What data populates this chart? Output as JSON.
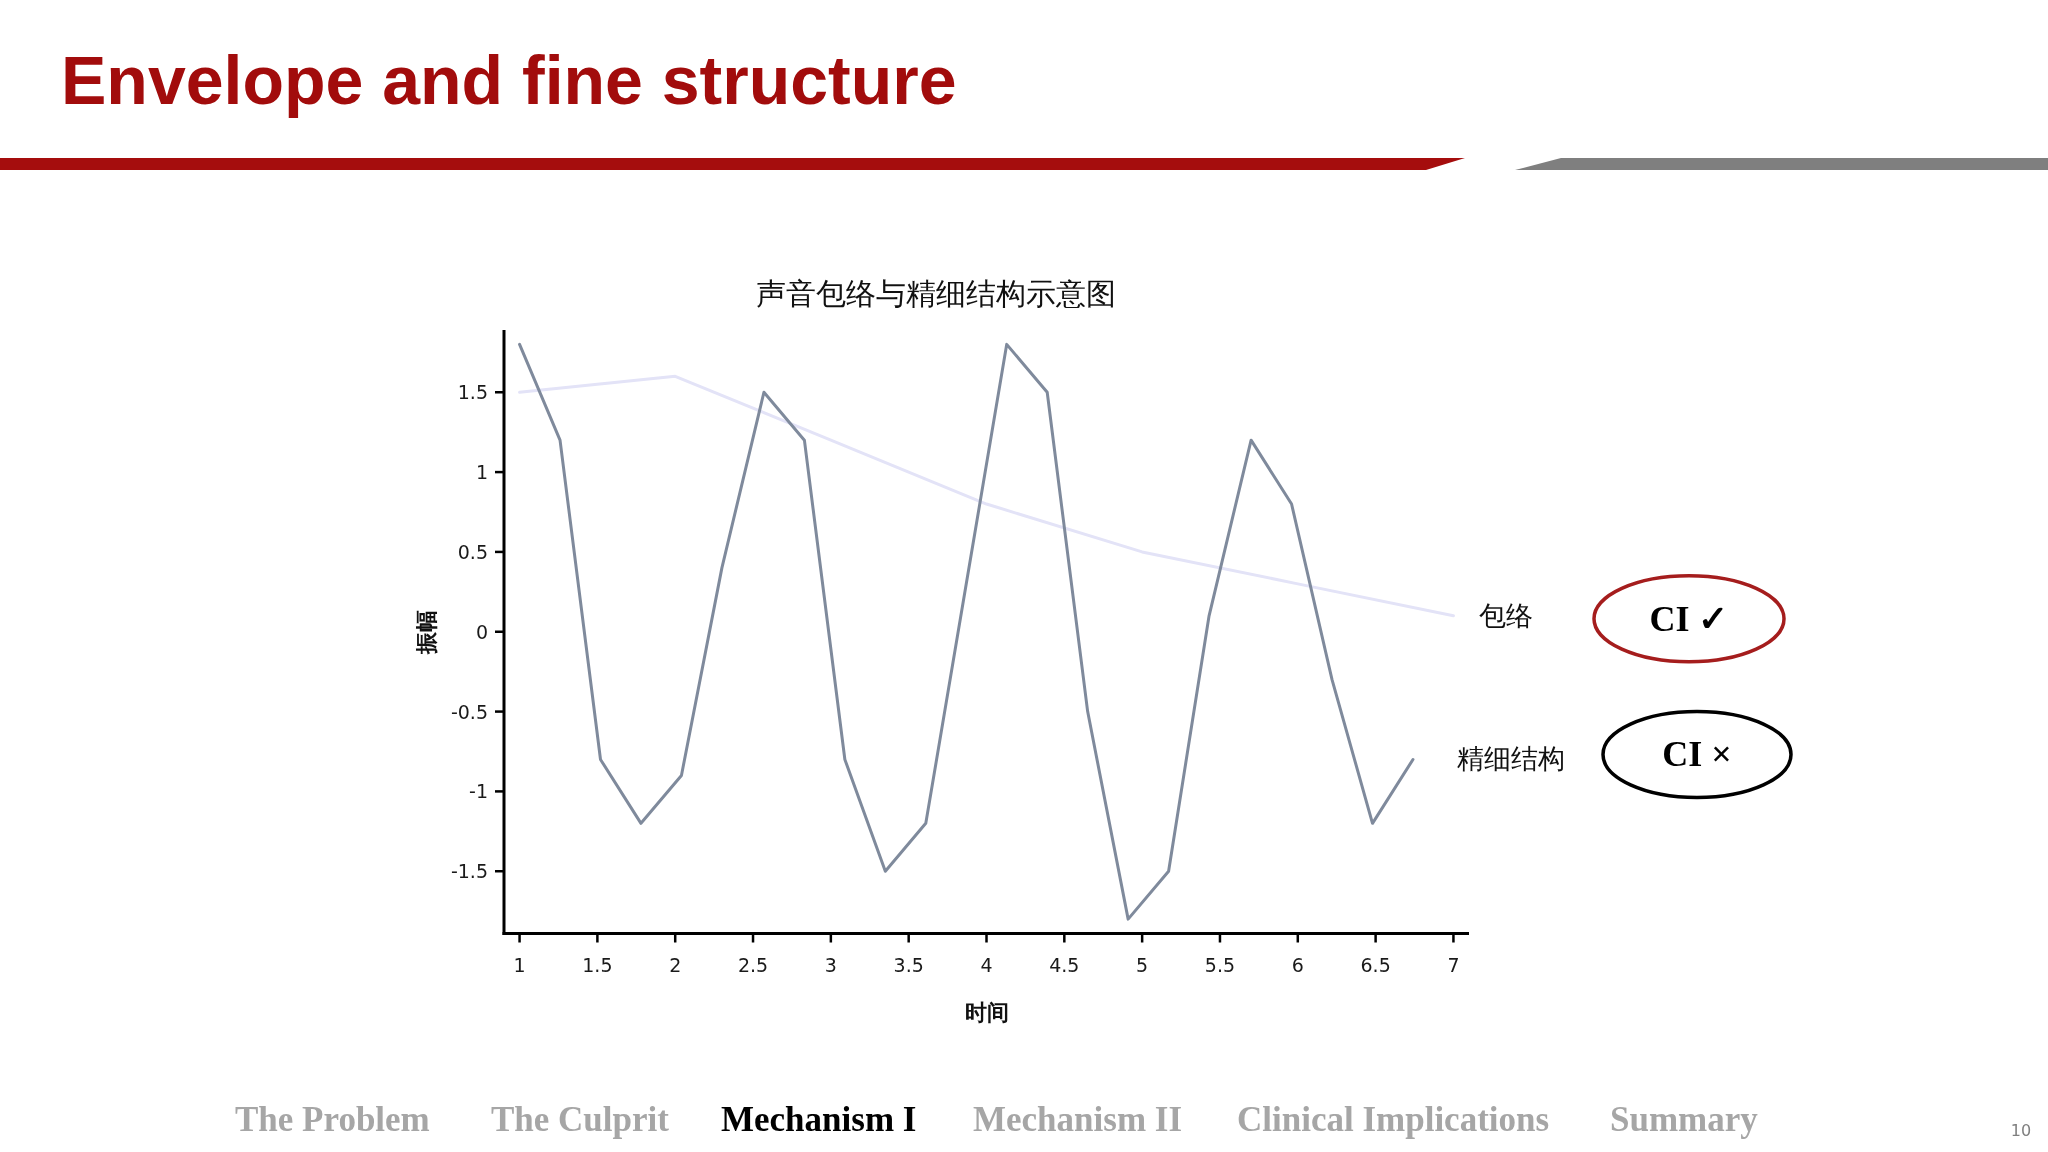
{
  "chart_data": {
    "type": "line",
    "title": "Envelope and fine structure",
    "subtitle": "声音包络与精细结构示意图",
    "xlabel": "时间",
    "ylabel": "振幅",
    "xlim": [
      0.9,
      7.1
    ],
    "ylim": [
      -1.89,
      1.89
    ],
    "xticks": [
      1,
      1.5,
      2,
      2.5,
      3,
      3.5,
      4,
      4.5,
      5,
      5.5,
      6,
      6.5,
      7
    ],
    "yticks": [
      -1.5,
      -1,
      -0.5,
      0,
      0.5,
      1,
      1.5
    ],
    "series": [
      {
        "name": "包络",
        "color": "#e3e3f7",
        "x": [
          1,
          2,
          3,
          4,
          5,
          6,
          7
        ],
        "values": [
          1.5,
          1.6,
          1.2,
          0.8,
          0.5,
          0.3,
          0.1
        ]
      },
      {
        "name": "精细结构",
        "color": "#7f8a9c",
        "x": [
          1,
          1.26,
          1.52,
          1.78,
          2.04,
          2.3,
          2.57,
          2.83,
          3.09,
          3.35,
          3.61,
          3.87,
          4.13,
          4.39,
          4.65,
          4.91,
          5.17,
          5.43,
          5.7,
          5.96,
          6.22,
          6.48,
          6.74
        ],
        "values": [
          1.8,
          1.2,
          -0.8,
          -1.2,
          -0.9,
          0.4,
          1.5,
          1.2,
          -0.8,
          -1.5,
          -1.2,
          0.3,
          1.8,
          1.5,
          -0.5,
          -1.8,
          -1.5,
          0.1,
          1.2,
          0.8,
          -0.3,
          -1.2,
          -0.8
        ]
      }
    ],
    "annotations": [
      "CI ✓",
      "CI ×",
      "The Problem",
      "The Culprit",
      "Mechanism I",
      "Mechanism II",
      "Clinical Implications",
      "Summary",
      "10"
    ]
  }
}
